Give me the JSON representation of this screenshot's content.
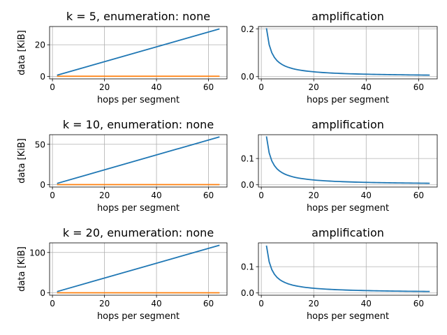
{
  "chart_data": [
    {
      "type": "line",
      "title": "k = 5, enumeration: none",
      "xlabel": "hops per segment",
      "ylabel": "data [KiB]",
      "xlim": [
        -1.1,
        67.1
      ],
      "ylim": [
        -1.5,
        31.5
      ],
      "xticks": [
        0,
        20,
        40,
        60
      ],
      "yticks": [
        0,
        20
      ],
      "grid": true,
      "series": [
        {
          "color": "#1f77b4",
          "x": [
            2,
            64
          ],
          "y": [
            0.9,
            29.9
          ]
        },
        {
          "color": "#ff7f0e",
          "x": [
            2,
            64
          ],
          "y": [
            0.15,
            0.15
          ]
        }
      ]
    },
    {
      "type": "line",
      "title": "amplification",
      "xlabel": "hops per segment",
      "ylabel": "",
      "xlim": [
        -1.1,
        67.1
      ],
      "ylim": [
        -0.0095,
        0.2095
      ],
      "xticks": [
        0,
        20,
        40,
        60
      ],
      "yticks": [
        0.0,
        0.2
      ],
      "ytick_labels": [
        "0.0",
        "0.2"
      ],
      "grid": true,
      "series": [
        {
          "color": "#1f77b4",
          "curve": "a/x",
          "a": 0.4,
          "x_range": [
            2,
            64
          ]
        }
      ]
    },
    {
      "type": "line",
      "title": "k = 10, enumeration: none",
      "xlabel": "hops per segment",
      "ylabel": "data [KiB]",
      "xlim": [
        -1.1,
        67.1
      ],
      "ylim": [
        -2.9,
        61.9
      ],
      "xticks": [
        0,
        20,
        40,
        60
      ],
      "yticks": [
        0,
        50
      ],
      "grid": true,
      "series": [
        {
          "color": "#1f77b4",
          "x": [
            2,
            64
          ],
          "y": [
            1.8,
            59.0
          ]
        },
        {
          "color": "#ff7f0e",
          "x": [
            2,
            64
          ],
          "y": [
            0.15,
            0.15
          ]
        }
      ]
    },
    {
      "type": "line",
      "title": "amplification",
      "xlabel": "hops per segment",
      "ylabel": "",
      "xlim": [
        -1.1,
        67.1
      ],
      "ylim": [
        -0.0087,
        0.1907
      ],
      "xticks": [
        0,
        20,
        40,
        60
      ],
      "yticks": [
        0.0,
        0.1
      ],
      "ytick_labels": [
        "0.0",
        "0.1"
      ],
      "grid": true,
      "series": [
        {
          "color": "#1f77b4",
          "curve": "a/x",
          "a": 0.364,
          "x_range": [
            2,
            64
          ]
        }
      ]
    },
    {
      "type": "line",
      "title": "k = 20, enumeration: none",
      "xlabel": "hops per segment",
      "ylabel": "data [KiB]",
      "xlim": [
        -1.1,
        67.1
      ],
      "ylim": [
        -5.8,
        123.8
      ],
      "xticks": [
        0,
        20,
        40,
        60
      ],
      "yticks": [
        0,
        100
      ],
      "grid": true,
      "series": [
        {
          "color": "#1f77b4",
          "x": [
            2,
            64
          ],
          "y": [
            3.6,
            117.5
          ]
        },
        {
          "color": "#ff7f0e",
          "x": [
            2,
            64
          ],
          "y": [
            0.2,
            0.2
          ]
        }
      ]
    },
    {
      "type": "line",
      "title": "amplification",
      "xlabel": "hops per segment",
      "ylabel": "",
      "xlim": [
        -1.1,
        67.1
      ],
      "ylim": [
        -0.0087,
        0.1907
      ],
      "xticks": [
        0,
        20,
        40,
        60
      ],
      "yticks": [
        0.0,
        0.1
      ],
      "ytick_labels": [
        "0.0",
        "0.1"
      ],
      "grid": true,
      "series": [
        {
          "color": "#1f77b4",
          "curve": "a/x",
          "a": 0.356,
          "x_range": [
            2,
            64
          ]
        }
      ]
    }
  ]
}
